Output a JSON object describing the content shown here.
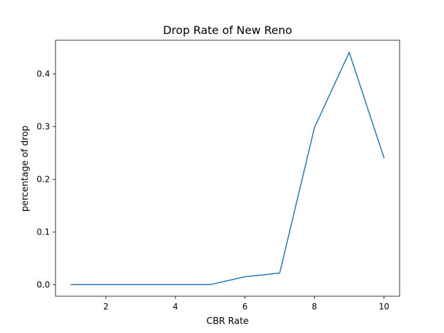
{
  "chart_data": {
    "type": "line",
    "title": "Drop Rate of New Reno",
    "xlabel": "CBR Rate",
    "ylabel": "percentage of drop",
    "xlim": [
      0.55,
      10.45
    ],
    "ylim": [
      -0.022,
      0.464
    ],
    "xticks": [
      2,
      4,
      6,
      8,
      10
    ],
    "yticks": [
      0.0,
      0.1,
      0.2,
      0.3,
      0.4
    ],
    "ytick_labels": [
      "0.0",
      "0.1",
      "0.2",
      "0.3",
      "0.4"
    ],
    "grid": false,
    "series": [
      {
        "color": "#1f77b4",
        "x": [
          1,
          2,
          3,
          4,
          5,
          6,
          7,
          8,
          9,
          10
        ],
        "y": [
          0.0,
          0.0,
          0.0,
          0.0,
          0.0,
          0.015,
          0.022,
          0.298,
          0.441,
          0.241
        ]
      }
    ]
  }
}
